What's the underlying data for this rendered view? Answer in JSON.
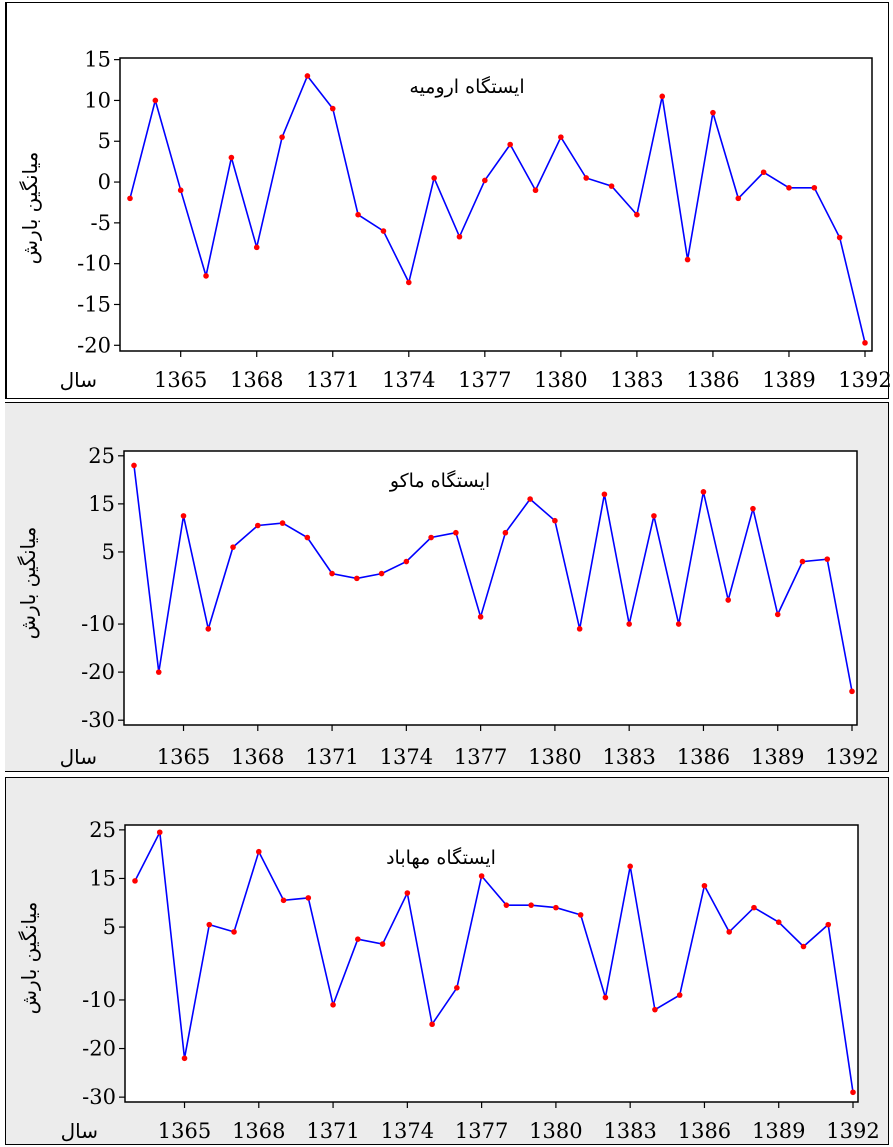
{
  "chart_data": [
    {
      "type": "line",
      "title": "ایستگاه ارومیه",
      "ylabel": "میانگین بارش",
      "xlabel": "سال",
      "x_ticks": [
        "1365",
        "1368",
        "1371",
        "1374",
        "1377",
        "1380",
        "1383",
        "1386",
        "1389",
        "1392"
      ],
      "y_ticks": [
        15,
        10,
        5,
        0,
        -5,
        -10,
        -15,
        -20
      ],
      "ylim": [
        -20.7,
        15.2
      ],
      "x": [
        1363,
        1364,
        1365,
        1366,
        1367,
        1368,
        1369,
        1370,
        1371,
        1372,
        1373,
        1374,
        1375,
        1376,
        1377,
        1378,
        1379,
        1380,
        1381,
        1382,
        1383,
        1384,
        1385,
        1386,
        1387,
        1388,
        1389,
        1390,
        1391,
        1392
      ],
      "series": [
        {
          "values": [
            -2,
            10,
            -1,
            -11.5,
            3,
            -8,
            5.5,
            13,
            9,
            -4,
            -6,
            -12.3,
            0.5,
            -6.7,
            0.2,
            4.6,
            -1,
            5.5,
            0.5,
            -0.5,
            -4,
            10.5,
            -9.5,
            8.5,
            -2,
            1.2,
            -0.7,
            -0.7,
            -6.8,
            -19.7
          ]
        }
      ],
      "line_color": "#0000ff",
      "marker_color": "#ff0000",
      "grid": false
    },
    {
      "type": "line",
      "title": "ایستگاه ماکو",
      "ylabel": "میانگین بارش",
      "xlabel": "سال",
      "x_ticks": [
        "1365",
        "1368",
        "1371",
        "1374",
        "1377",
        "1380",
        "1383",
        "1386",
        "1389",
        "1392"
      ],
      "y_ticks": [
        25,
        15,
        5,
        -10,
        -20,
        -30
      ],
      "ylim": [
        -31,
        26
      ],
      "x": [
        1363,
        1364,
        1365,
        1366,
        1367,
        1368,
        1369,
        1370,
        1371,
        1372,
        1373,
        1374,
        1375,
        1376,
        1377,
        1378,
        1379,
        1380,
        1381,
        1382,
        1383,
        1384,
        1385,
        1386,
        1387,
        1388,
        1389,
        1390,
        1391,
        1392
      ],
      "series": [
        {
          "values": [
            23,
            -20,
            12.5,
            -11,
            6,
            10.5,
            11,
            8,
            0.5,
            -0.5,
            0.5,
            3,
            8,
            9,
            -8.5,
            9,
            16,
            11.5,
            -11,
            17,
            -10,
            12.5,
            -10,
            17.5,
            -5,
            14,
            -8,
            3,
            3.5,
            -24
          ]
        }
      ],
      "line_color": "#0000ff",
      "marker_color": "#ff0000",
      "grid": false
    },
    {
      "type": "line",
      "title": "ایستگاه مهاباد",
      "ylabel": "میانگین بارش",
      "xlabel": "سال",
      "x_ticks": [
        "1365",
        "1368",
        "1371",
        "1374",
        "1377",
        "1380",
        "1383",
        "1386",
        "1389",
        "1392"
      ],
      "y_ticks": [
        25,
        15,
        5,
        -10,
        -20,
        -30
      ],
      "ylim": [
        -31,
        26
      ],
      "x": [
        1363,
        1364,
        1365,
        1366,
        1367,
        1368,
        1369,
        1370,
        1371,
        1372,
        1373,
        1374,
        1375,
        1376,
        1377,
        1378,
        1379,
        1380,
        1381,
        1382,
        1383,
        1384,
        1385,
        1386,
        1387,
        1388,
        1389,
        1390,
        1391,
        1392
      ],
      "series": [
        {
          "values": [
            14.5,
            24.5,
            -22,
            5.5,
            4,
            20.5,
            10.5,
            11,
            -11,
            2.5,
            1.5,
            12,
            -15,
            -7.5,
            15.5,
            9.5,
            9.5,
            9,
            7.5,
            -9.5,
            17.5,
            -12,
            -9,
            13.5,
            4,
            9,
            6,
            1,
            5.5,
            -29
          ]
        }
      ],
      "line_color": "#0000ff",
      "marker_color": "#ff0000",
      "grid": false
    }
  ]
}
